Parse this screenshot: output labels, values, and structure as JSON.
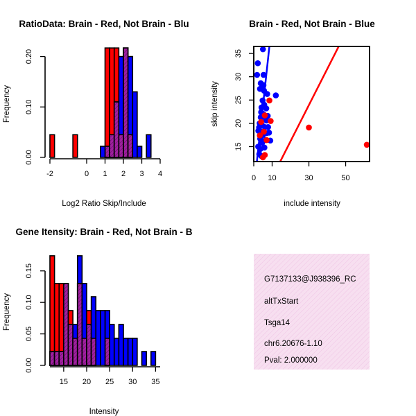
{
  "chart_data": [
    {
      "type": "histogram",
      "title": "RatioData: Brain - Red, Not Brain - Blu",
      "xlabel": "Log2 Ratio Skip/Include",
      "ylabel": "Frequency",
      "xlim": [
        -2,
        4
      ],
      "ylim": [
        0,
        0.22
      ],
      "xticks": [
        "-2",
        "0",
        "1",
        "2",
        "3",
        "4"
      ],
      "xtick_values": [
        -2,
        0,
        1,
        2,
        3,
        4
      ],
      "yticks": [
        "0.00",
        "0.10",
        "0.20"
      ],
      "ytick_values": [
        0,
        0.1,
        0.2
      ],
      "series": [
        {
          "name": "Brain",
          "color": "#ff0000",
          "bins": [
            [
              -2.0,
              -1.75,
              0.045
            ],
            [
              -0.75,
              -0.5,
              0.045
            ],
            [
              1.0,
              1.25,
              0.217
            ],
            [
              1.25,
              1.5,
              0.217
            ],
            [
              1.5,
              1.75,
              0.217
            ],
            [
              1.75,
              2.0,
              0.045
            ],
            [
              2.0,
              2.25,
              0.217
            ],
            [
              2.25,
              2.5,
              0.045
            ]
          ]
        },
        {
          "name": "Not Brain",
          "color": "#0000ff",
          "bins": [
            [
              0.75,
              1.0,
              0.022
            ],
            [
              1.0,
              1.25,
              0.022
            ],
            [
              1.25,
              1.5,
              0.045
            ],
            [
              1.5,
              1.75,
              0.11
            ],
            [
              1.75,
              2.0,
              0.2
            ],
            [
              2.0,
              2.25,
              0.217
            ],
            [
              2.25,
              2.5,
              0.2
            ],
            [
              2.5,
              2.75,
              0.13
            ],
            [
              2.75,
              3.0,
              0.022
            ],
            [
              3.25,
              3.5,
              0.045
            ]
          ]
        }
      ]
    },
    {
      "type": "scatter",
      "title": "Brain - Red, Not Brain - Blue",
      "xlabel": "include intensity",
      "ylabel": "skip intensity",
      "xlim": [
        0,
        63
      ],
      "ylim": [
        11.8,
        36.5
      ],
      "xticks": [
        "0",
        "10",
        "30",
        "50"
      ],
      "xtick_values": [
        0,
        10,
        30,
        50
      ],
      "yticks": [
        "15",
        "20",
        "25",
        "30",
        "35"
      ],
      "ytick_values": [
        15,
        20,
        25,
        30,
        35
      ],
      "series": [
        {
          "name": "Brain",
          "color": "#ff0000",
          "points": [
            [
              61.5,
              15.4
            ],
            [
              30,
              19.1
            ],
            [
              9.2,
              20.5
            ],
            [
              8.5,
              24.9
            ],
            [
              7,
              16.4
            ],
            [
              5.5,
              18.2
            ],
            [
              6,
              21.7
            ],
            [
              4,
              20.3
            ],
            [
              5,
              12.7
            ],
            [
              3.3,
              17.4
            ],
            [
              6,
              13.2
            ]
          ]
        },
        {
          "name": "Not Brain",
          "color": "#0000ff",
          "points": [
            [
              5,
              35.9
            ],
            [
              2.2,
              32.9
            ],
            [
              1.8,
              30.4
            ],
            [
              5.3,
              30.4
            ],
            [
              3.8,
              28.6
            ],
            [
              5.3,
              28.2
            ],
            [
              5.6,
              27
            ],
            [
              3.4,
              27.4
            ],
            [
              12,
              26
            ],
            [
              7.3,
              26.3
            ],
            [
              4.8,
              24.9
            ],
            [
              5.7,
              24
            ],
            [
              6.8,
              23.2
            ],
            [
              4,
              22.4
            ],
            [
              4.2,
              23.4
            ],
            [
              5.2,
              22
            ],
            [
              3.8,
              21.3
            ],
            [
              6.4,
              21.1
            ],
            [
              7.6,
              21.6
            ],
            [
              6.9,
              20.6
            ],
            [
              3.2,
              20
            ],
            [
              4.5,
              19.6
            ],
            [
              2.9,
              19.1
            ],
            [
              6,
              19.2
            ],
            [
              7.8,
              19.2
            ],
            [
              2.5,
              18.4
            ],
            [
              4.2,
              18.2
            ],
            [
              7,
              17.9
            ],
            [
              8.3,
              18
            ],
            [
              5,
              17.5
            ],
            [
              3.5,
              16.7
            ],
            [
              6.5,
              16.4
            ],
            [
              9,
              16.3
            ],
            [
              4.5,
              15.8
            ],
            [
              2.4,
              15
            ],
            [
              5.8,
              14.8
            ],
            [
              3.6,
              14.5
            ],
            [
              3,
              13.4
            ],
            [
              4.1,
              13
            ]
          ]
        }
      ],
      "fit_lines": [
        {
          "color": "#0000ff",
          "points": [
            [
              1.7,
              11.8
            ],
            [
              8.5,
              36.5
            ]
          ]
        },
        {
          "color": "#ff0000",
          "points": [
            [
              14.4,
              11.8
            ],
            [
              46.2,
              36.5
            ]
          ]
        }
      ]
    },
    {
      "type": "histogram",
      "title": "Gene Itensity: Brain - Red, Not Brain - B",
      "xlabel": "Intensity",
      "ylabel": "Frequency",
      "xlim": [
        12,
        36
      ],
      "ylim": [
        0,
        0.175
      ],
      "xticks": [
        "15",
        "20",
        "25",
        "30",
        "35"
      ],
      "xtick_values": [
        15,
        20,
        25,
        30,
        35
      ],
      "yticks": [
        "0.00",
        "0.05",
        "0.10",
        "0.15"
      ],
      "ytick_values": [
        0,
        0.05,
        0.1,
        0.15
      ],
      "series": [
        {
          "name": "Brain",
          "color": "#ff0000",
          "bins": [
            [
              12,
              13,
              0.174
            ],
            [
              13,
              14,
              0.13
            ],
            [
              14,
              15,
              0.13
            ],
            [
              15,
              16,
              0.13
            ],
            [
              16,
              17,
              0.087
            ],
            [
              17,
              18,
              0.043
            ],
            [
              18,
              19,
              0.13
            ],
            [
              19,
              20,
              0.043
            ],
            [
              20,
              21,
              0.087
            ],
            [
              21,
              22,
              0.043
            ],
            [
              24,
              25,
              0.043
            ]
          ]
        },
        {
          "name": "Not Brain",
          "color": "#0000ff",
          "bins": [
            [
              12,
              13,
              0.022
            ],
            [
              13,
              14,
              0.022
            ],
            [
              14,
              15,
              0.022
            ],
            [
              15,
              16,
              0.13
            ],
            [
              16,
              17,
              0.065
            ],
            [
              17,
              18,
              0.065
            ],
            [
              18,
              19,
              0.174
            ],
            [
              19,
              20,
              0.13
            ],
            [
              20,
              21,
              0.065
            ],
            [
              21,
              22,
              0.109
            ],
            [
              22,
              23,
              0.087
            ],
            [
              23,
              24,
              0.087
            ],
            [
              24,
              25,
              0.087
            ],
            [
              25,
              26,
              0.065
            ],
            [
              26,
              27,
              0.043
            ],
            [
              27,
              28,
              0.065
            ],
            [
              28,
              29,
              0.043
            ],
            [
              29,
              30,
              0.043
            ],
            [
              30,
              31,
              0.043
            ],
            [
              32,
              33,
              0.022
            ],
            [
              34,
              35,
              0.022
            ]
          ]
        }
      ]
    }
  ],
  "info_panel": {
    "lines": [
      "G7137133@J938396_RC",
      "altTxStart",
      "Tsga14",
      "chr6.20676-1.10"
    ],
    "pval": "Pval: 2.000000",
    "pval_color": "#8b0000",
    "background": "#f7dff0"
  }
}
